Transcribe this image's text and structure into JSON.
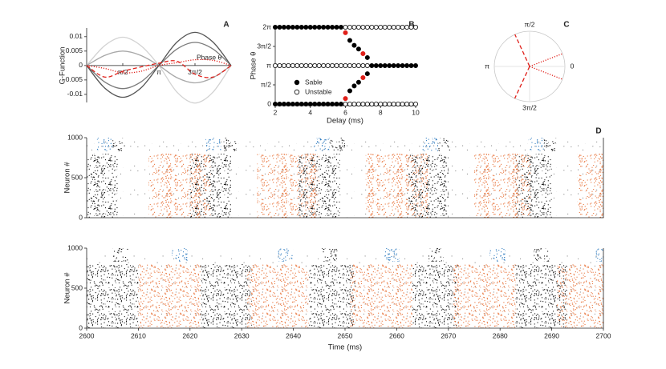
{
  "chart_data": [
    {
      "type": "line",
      "panel": "A",
      "ylabel": "G-Function",
      "annotation": "Phase θ",
      "xlim": [
        0,
        6.2832
      ],
      "ylim": [
        -0.0128,
        0.013
      ],
      "xticks": [
        {
          "value": 1.5708,
          "label": "π/2"
        },
        {
          "value": 3.1416,
          "label": "π"
        },
        {
          "value": 4.7124,
          "label": "3π/2"
        }
      ],
      "yticks": [
        0.01,
        0.005,
        0,
        -0.005,
        -0.01
      ],
      "x": [
        0,
        0.7854,
        1.5708,
        2.3562,
        3.1416,
        3.927,
        4.7124,
        5.4978,
        6.2832
      ],
      "series": [
        {
          "color": "#d2d2d2",
          "dash": "solid",
          "values": [
            0,
            0.0069,
            0.0098,
            0.0069,
            0,
            -0.0092,
            -0.013,
            -0.0092,
            0
          ]
        },
        {
          "color": "#a8a8a8",
          "dash": "solid",
          "values": [
            0,
            0.0035,
            0.005,
            0.0035,
            0,
            -0.0042,
            -0.006,
            -0.0042,
            0
          ]
        },
        {
          "color": "#7a7a7a",
          "dash": "solid",
          "values": [
            0,
            -0.0057,
            -0.008,
            -0.0057,
            0,
            0.0057,
            0.008,
            0.0057,
            0
          ]
        },
        {
          "color": "#555555",
          "dash": "solid",
          "values": [
            0,
            -0.0078,
            -0.011,
            -0.0078,
            0,
            0.0081,
            0.0115,
            0.0081,
            0
          ]
        },
        {
          "color": "#e0201a",
          "dash": "dashed",
          "values": [
            0,
            -0.004,
            -0.002,
            -0.0005,
            0.0008,
            0.0015,
            -0.003,
            -0.004,
            0
          ]
        },
        {
          "color": "#e0201a",
          "dash": "dotted",
          "values": [
            0,
            -0.001,
            -0.0025,
            -0.002,
            0,
            0.001,
            0.002,
            0.0018,
            0
          ]
        }
      ]
    },
    {
      "type": "scatter",
      "panel": "B",
      "xlabel": "Delay (ms)",
      "ylabel": "Phase θ",
      "xlim": [
        2,
        10
      ],
      "ylim": [
        0,
        6.2832
      ],
      "xticks": [
        2,
        4,
        6,
        8,
        10
      ],
      "yticks": [
        0,
        {
          "value": 1.5708,
          "label": "π/2"
        },
        {
          "value": 3.1416,
          "label": "π"
        },
        {
          "value": 4.7124,
          "label": "3π/2"
        },
        {
          "value": 6.2832,
          "label": "2π"
        }
      ],
      "series": [
        {
          "name": "Sable",
          "color": "#000000",
          "filled": true,
          "x": [
            2,
            2.25,
            2.5,
            2.75,
            3,
            3.25,
            3.5,
            3.75,
            4,
            4.25,
            4.5,
            4.75,
            5,
            5.25,
            5.5,
            5.75,
            2,
            2.25,
            2.5,
            2.75,
            3,
            3.25,
            3.5,
            3.75,
            4,
            4.25,
            4.5,
            4.75,
            5,
            5.25,
            5.5,
            5.75,
            6.25,
            6.5,
            6.75,
            7.25,
            6.25,
            6.5,
            6.75,
            7.25,
            7.5,
            7.75,
            8,
            8.25,
            8.5,
            8.75,
            9,
            9.25,
            9.5,
            9.75,
            10
          ],
          "values": [
            0,
            0,
            0,
            0,
            0,
            0,
            0,
            0,
            0,
            0,
            0,
            0,
            0,
            0,
            0,
            0,
            6.283,
            6.283,
            6.283,
            6.283,
            6.283,
            6.283,
            6.283,
            6.283,
            6.283,
            6.283,
            6.283,
            6.283,
            6.283,
            6.283,
            6.283,
            6.283,
            5.2,
            4.8,
            4.5,
            3.8,
            1.083,
            1.483,
            1.783,
            2.483,
            3.142,
            3.142,
            3.142,
            3.142,
            3.142,
            3.142,
            3.142,
            3.142,
            3.142,
            3.142,
            3.142
          ]
        },
        {
          "name": "Unstable",
          "color": "#000000",
          "filled": false,
          "x": [
            6,
            6.25,
            6.5,
            6.75,
            7,
            7.25,
            7.5,
            7.75,
            8,
            8.25,
            8.5,
            8.75,
            9,
            9.25,
            9.5,
            9.75,
            10,
            6,
            6.25,
            6.5,
            6.75,
            7,
            7.25,
            7.5,
            7.75,
            8,
            8.25,
            8.5,
            8.75,
            9,
            9.25,
            9.5,
            9.75,
            10,
            2,
            2.25,
            2.5,
            2.75,
            3,
            3.25,
            3.5,
            3.75,
            4,
            4.25,
            4.5,
            4.75,
            5,
            5.25,
            5.5,
            5.75,
            6,
            6.25,
            6.5,
            6.75,
            7,
            7.25
          ],
          "values": [
            0,
            0,
            0,
            0,
            0,
            0,
            0,
            0,
            0,
            0,
            0,
            0,
            0,
            0,
            0,
            0,
            0,
            6.283,
            6.283,
            6.283,
            6.283,
            6.283,
            6.283,
            6.283,
            6.283,
            6.283,
            6.283,
            6.283,
            6.283,
            6.283,
            6.283,
            6.283,
            6.283,
            6.283,
            3.142,
            3.142,
            3.142,
            3.142,
            3.142,
            3.142,
            3.142,
            3.142,
            3.142,
            3.142,
            3.142,
            3.142,
            3.142,
            3.142,
            3.142,
            3.142,
            3.142,
            3.142,
            3.142,
            3.142,
            3.142,
            3.142
          ]
        },
        {
          "color": "#e0201a",
          "filled": true,
          "x": [
            6,
            7,
            6,
            7
          ],
          "values": [
            5.83,
            4.12,
            0.45,
            2.16
          ]
        }
      ]
    },
    {
      "type": "polar",
      "panel": "C",
      "angle_ticks": [
        {
          "value": 1.5708,
          "label": "π/2"
        },
        {
          "value": 0,
          "label": "0"
        },
        {
          "value": 3.1416,
          "label": "π"
        },
        {
          "value": 4.7124,
          "label": "3π/2"
        }
      ],
      "series": [
        {
          "color": "#e0201a",
          "dash": "dashed",
          "values": [
            2.0,
            4.28
          ]
        },
        {
          "color": "#e0201a",
          "dash": "dotted",
          "values": [
            0.37,
            5.91
          ]
        }
      ]
    },
    {
      "type": "raster",
      "panel": "D",
      "ylabel": "Neuron #",
      "xlim": [
        2600,
        2700
      ],
      "ylim": [
        0,
        1000
      ],
      "yticks": [
        0,
        500,
        1000
      ],
      "groups": [
        {
          "color": "#2f7bbf",
          "n": [
            830,
            1000
          ],
          "t": [
            [
              2602,
              2605
            ],
            [
              2623,
              2626
            ],
            [
              2644,
              2647
            ],
            [
              2665,
              2668
            ],
            [
              2685.5,
              2688.5
            ]
          ]
        },
        {
          "color": "#111111",
          "n": [
            830,
            1000
          ],
          "t": [
            [
              2605,
              2607.5
            ],
            [
              2626.5,
              2629
            ],
            [
              2647,
              2650
            ],
            [
              2668,
              2670.5
            ],
            [
              2688.5,
              2691
            ]
          ]
        },
        {
          "color": "#111111",
          "n": [
            0,
            800
          ],
          "t": [
            [
              2600,
              2606
            ],
            [
              2620,
              2628
            ],
            [
              2641,
              2649
            ],
            [
              2662,
              2670
            ],
            [
              2683,
              2690
            ]
          ]
        },
        {
          "color": "#e8743b",
          "n": [
            0,
            800
          ],
          "t": [
            [
              2612,
              2624
            ],
            [
              2633,
              2645
            ],
            [
              2654,
              2666
            ],
            [
              2675,
              2686
            ],
            [
              2695,
              2700
            ]
          ]
        }
      ]
    },
    {
      "type": "raster",
      "xlabel": "Time (ms)",
      "ylabel": "Neuron #",
      "xlim": [
        2600,
        2700
      ],
      "ylim": [
        0,
        1000
      ],
      "yticks": [
        0,
        500,
        1000
      ],
      "xticks": [
        2600,
        2610,
        2620,
        2630,
        2640,
        2650,
        2660,
        2670,
        2680,
        2690,
        2700
      ],
      "groups": [
        {
          "color": "#2f7bbf",
          "n": [
            830,
            1000
          ],
          "t": [
            [
              2616.5,
              2619.5
            ],
            [
              2637,
              2640
            ],
            [
              2657.5,
              2660.5
            ],
            [
              2678,
              2681
            ],
            [
              2698.5,
              2700
            ]
          ]
        },
        {
          "color": "#111111",
          "n": [
            830,
            1000
          ],
          "t": [
            [
              2605,
              2608
            ],
            [
              2645.5,
              2648.5
            ],
            [
              2666,
              2669
            ],
            [
              2686.5,
              2689.5
            ]
          ]
        },
        {
          "color": "#111111",
          "n": [
            0,
            800
          ],
          "t": [
            [
              2600,
              2610
            ],
            [
              2622,
              2632
            ],
            [
              2643,
              2652
            ],
            [
              2663,
              2672
            ],
            [
              2683,
              2693
            ]
          ]
        },
        {
          "color": "#e8743b",
          "n": [
            0,
            800
          ],
          "t": [
            [
              2610,
              2622
            ],
            [
              2631,
              2643
            ],
            [
              2651,
              2663
            ],
            [
              2671,
              2683
            ],
            [
              2691,
              2700
            ]
          ]
        }
      ]
    }
  ]
}
